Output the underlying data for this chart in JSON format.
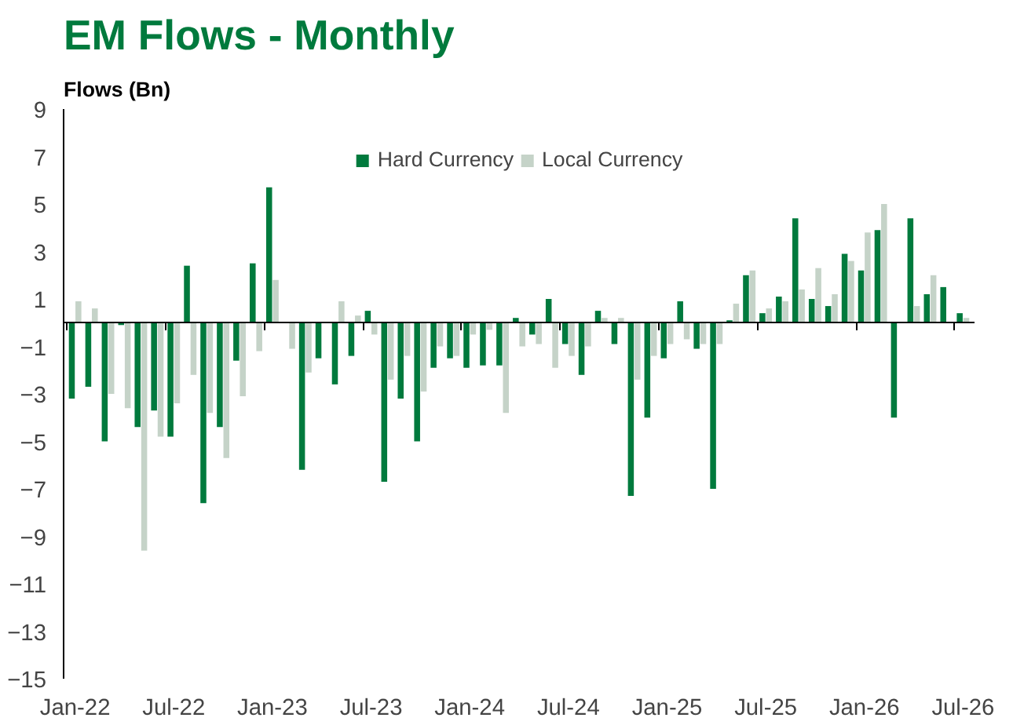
{
  "chart_data": {
    "type": "bar",
    "title": "EM Flows - Monthly",
    "ylabel": "Flows (Bn)",
    "categories": [
      "Jan-22",
      null,
      null,
      null,
      null,
      null,
      "Jul-22",
      null,
      null,
      null,
      null,
      null,
      "Jan-23",
      null,
      null,
      null,
      null,
      null,
      "Jul-23",
      null,
      null,
      null,
      null,
      null,
      "Jan-24",
      null,
      null,
      null,
      null,
      null,
      "Jul-24",
      null,
      null,
      null,
      null,
      null,
      "Jan-25",
      null,
      null,
      null,
      null,
      null,
      "Jul-25",
      null,
      null,
      null,
      null,
      null,
      "Jan-26",
      null,
      null,
      null,
      null,
      null,
      "Jul-26"
    ],
    "series": [
      {
        "name": "Hard Currency",
        "color": "#007a3d",
        "values": [
          -3.2,
          -2.7,
          -5.0,
          -0.1,
          -4.4,
          -3.7,
          -4.8,
          2.4,
          -7.6,
          -4.4,
          -1.6,
          2.5,
          5.7,
          0,
          -6.2,
          -1.5,
          -2.6,
          -1.4,
          0.5,
          -6.7,
          -3.2,
          -5.0,
          -1.9,
          -1.5,
          -1.9,
          -1.8,
          -1.8,
          0.2,
          -0.5,
          1.0,
          -0.9,
          -2.2,
          0.5,
          -0.9,
          -7.3,
          -4.0,
          -1.5,
          0.9,
          -1.1,
          -7.0,
          0.1,
          2.0,
          0.4,
          1.1,
          4.4,
          1.0,
          0.7,
          2.9,
          2.2,
          3.9,
          -4.0,
          4.4,
          1.2,
          1.5,
          0.4
        ]
      },
      {
        "name": "Local Currency",
        "color": "#c5d3c8",
        "values": [
          0.9,
          0.6,
          -3.0,
          -3.6,
          -9.6,
          -4.8,
          -3.4,
          -2.2,
          -3.8,
          -5.7,
          -3.1,
          -1.2,
          1.8,
          -1.1,
          -2.1,
          null,
          0.9,
          0.3,
          -0.5,
          -2.4,
          -1.4,
          -2.9,
          -1.0,
          -1.4,
          -0.5,
          -0.3,
          -3.8,
          -1.0,
          -0.9,
          -1.9,
          -1.4,
          -1.0,
          0.2,
          0.2,
          -2.4,
          -1.4,
          -0.9,
          -0.7,
          -0.9,
          -0.9,
          0.8,
          2.2,
          0.6,
          0.9,
          1.4,
          2.3,
          1.2,
          2.6,
          3.8,
          5.0,
          null,
          0.7,
          2.0,
          0,
          0.2
        ]
      }
    ],
    "ylim": [
      -15,
      9
    ],
    "yticks": [
      -15,
      -13,
      -11,
      -9,
      -7,
      -5,
      -3,
      -1,
      1,
      3,
      5,
      7,
      9
    ],
    "grid": false,
    "legend": "top"
  }
}
